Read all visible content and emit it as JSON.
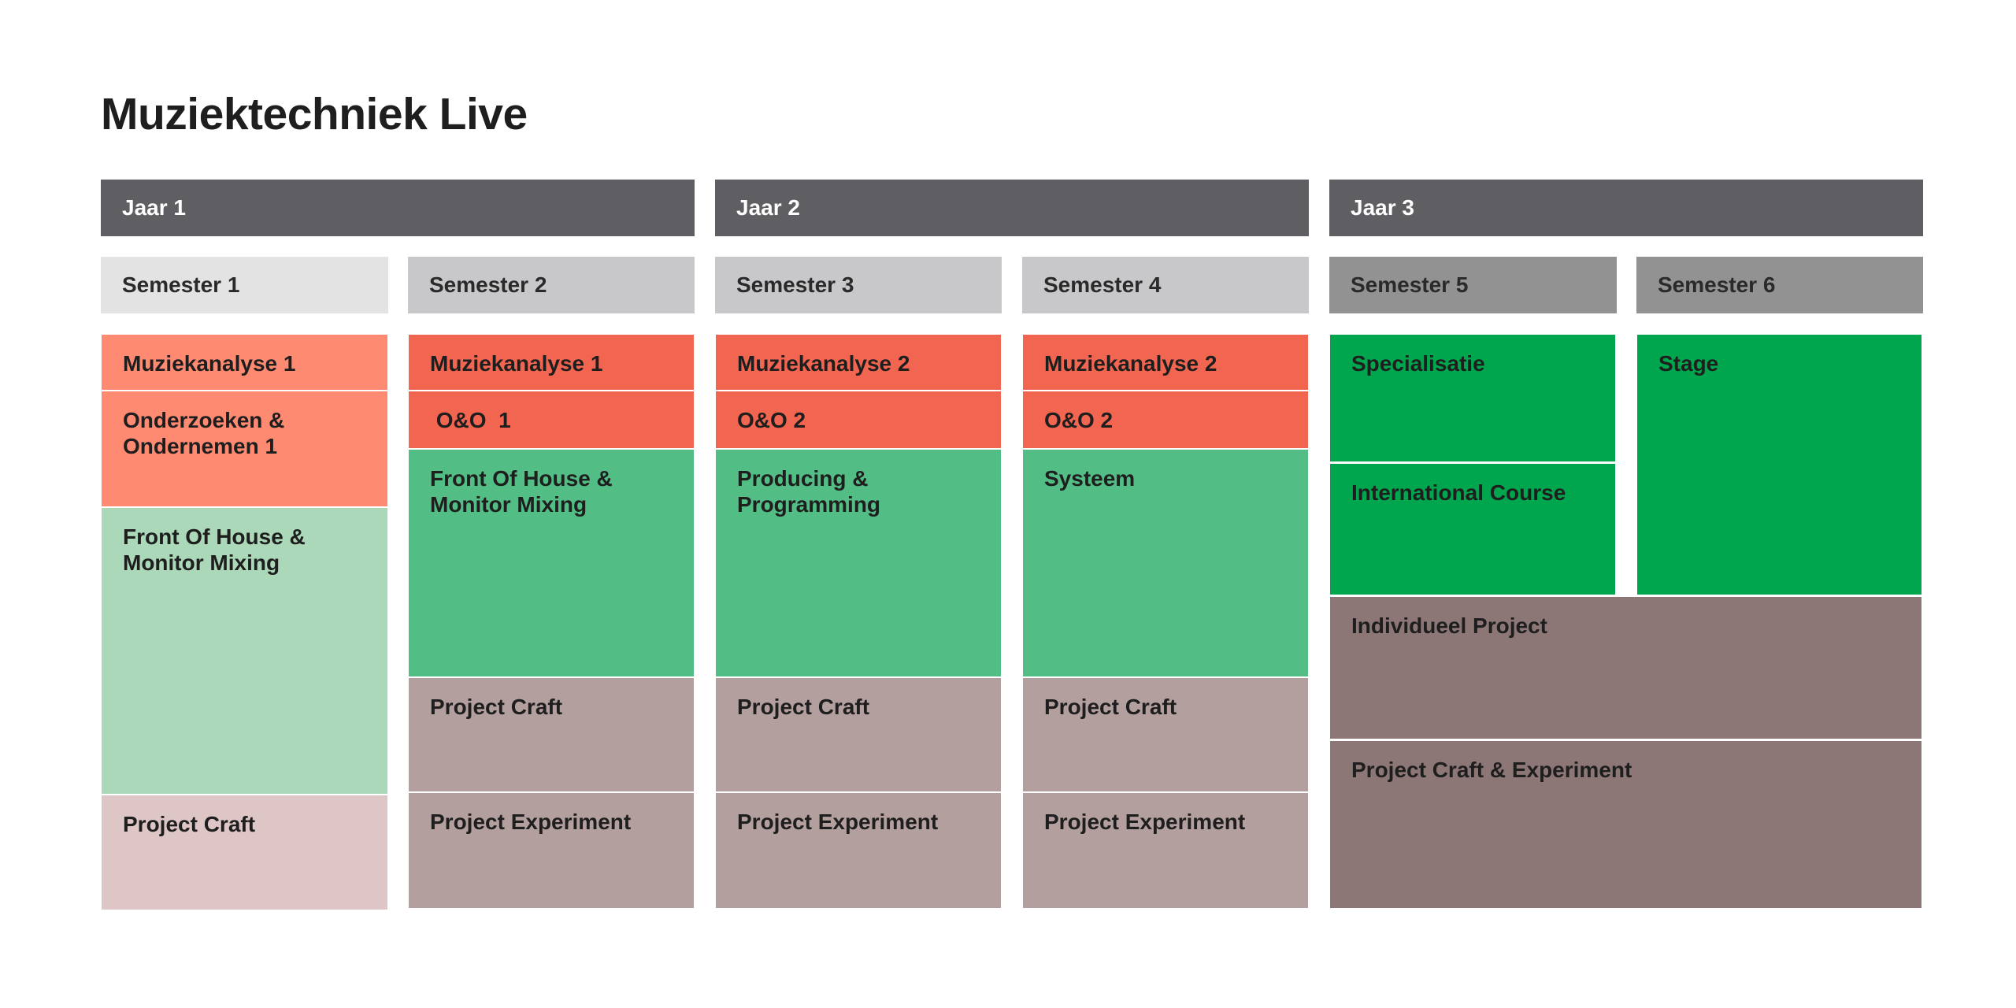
{
  "title": "Muziektechniek Live",
  "years": [
    {
      "label": "Jaar 1"
    },
    {
      "label": "Jaar 2"
    },
    {
      "label": "Jaar 3"
    }
  ],
  "semesters": [
    {
      "label": "Semester 1"
    },
    {
      "label": "Semester 2"
    },
    {
      "label": "Semester 3"
    },
    {
      "label": "Semester 4"
    },
    {
      "label": "Semester 5"
    },
    {
      "label": "Semester 6"
    }
  ],
  "semester1": {
    "courses": [
      "Muziekanalyse 1",
      "Onderzoeken &\nOndernemen 1",
      "Front Of House &\nMonitor Mixing",
      "Project Craft"
    ]
  },
  "semester2": {
    "courses": [
      "Muziekanalyse 1",
      " O&O  1",
      "Front Of House &\nMonitor Mixing",
      "Project Craft",
      "Project Experiment"
    ]
  },
  "semester3": {
    "courses": [
      "Muziekanalyse 2",
      "O&O 2",
      "Producing &\nProgramming",
      "Project Craft",
      "Project Experiment"
    ]
  },
  "semester4": {
    "courses": [
      "Muziekanalyse 2",
      "O&O 2",
      "Systeem",
      "Project Craft",
      "Project Experiment"
    ]
  },
  "semester5": {
    "courses": [
      "Specialisatie",
      "International Course"
    ]
  },
  "semester6": {
    "courses": [
      "Stage"
    ]
  },
  "year3_shared": {
    "courses": [
      "Individueel Project",
      "Project Craft & Experiment"
    ]
  },
  "colors": {
    "year_header": "#5f5e62",
    "semester_light": "#e3e3e3",
    "semester_mid": "#c8c8cb",
    "semester_dark": "#929292",
    "salmon": "#ff8a72",
    "red": "#f26550",
    "mint": "#aad8b8",
    "green": "#52bd84",
    "bright_green": "#00a64e",
    "pink": "#dec6c6",
    "taupe": "#b39f9e",
    "mauve": "#8d7776"
  }
}
